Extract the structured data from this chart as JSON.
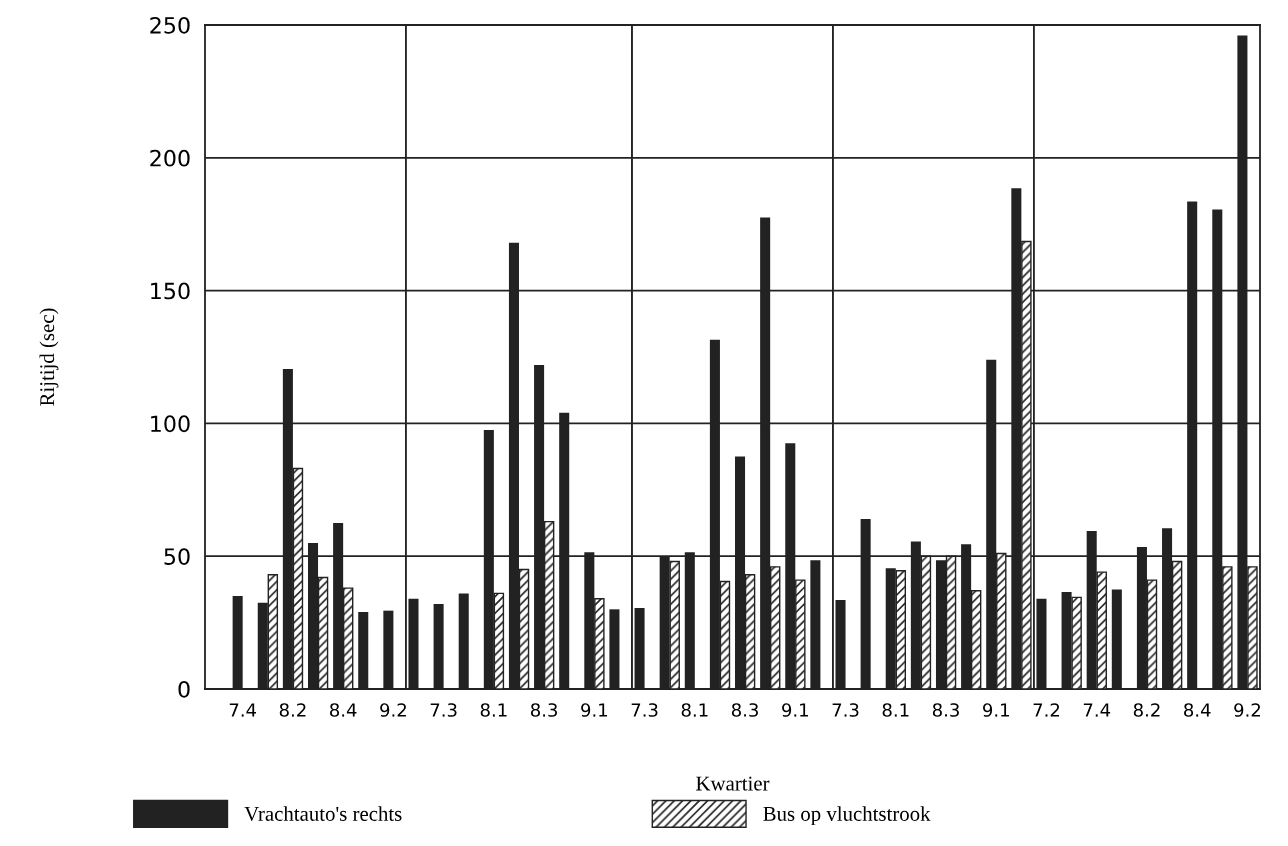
{
  "chart_data": [
    {
      "type": "bar",
      "ylabel": "Rijtijd (sec)",
      "categories": [
        null,
        "7.4",
        null,
        "8.2",
        null,
        "8.4",
        null,
        "9.2"
      ],
      "ylim": [
        0,
        250
      ],
      "yticks": [
        0,
        50,
        100,
        150,
        200,
        250
      ],
      "grid": "y",
      "legend": "bottom",
      "series": [
        {
          "name": "Vrachtauto's rechts",
          "color": "#222222",
          "values": [
            null,
            35,
            32.5,
            120.5,
            55,
            62.5,
            29,
            29.5
          ]
        },
        {
          "name": "Bus op vluchtstrook",
          "color": "#222222",
          "values": [
            null,
            null,
            43,
            83,
            42,
            38,
            null,
            null
          ]
        }
      ]
    },
    {
      "type": "bar",
      "categories": [
        null,
        "7.3",
        null,
        "8.1",
        null,
        "8.3",
        null,
        "9.1",
        null
      ],
      "ylim": [
        0,
        250
      ],
      "yticks": [
        0,
        50,
        100,
        150,
        200,
        250
      ],
      "grid": "y",
      "tick_labels": "x",
      "series": [
        {
          "color": "#222222",
          "values": [
            34,
            32,
            36,
            97.5,
            168,
            122,
            104,
            51.5,
            30
          ]
        },
        {
          "color": "#222222",
          "values": [
            null,
            null,
            null,
            36,
            45,
            63,
            null,
            34,
            null
          ]
        }
      ]
    },
    {
      "type": "bar",
      "xlabel": "Kwartier",
      "categories": [
        "7.3",
        null,
        "8.1",
        null,
        "8.3",
        null,
        "9.1",
        null
      ],
      "ylim": [
        0,
        250
      ],
      "yticks": [
        0,
        50,
        100,
        150,
        200,
        250
      ],
      "grid": "y",
      "tick_labels": "x",
      "series": [
        {
          "color": "#222222",
          "values": [
            30.5,
            50,
            51.5,
            131.5,
            87.5,
            177.5,
            92.5,
            48.5
          ]
        },
        {
          "color": "#222222",
          "values": [
            null,
            48,
            null,
            40.5,
            43,
            46,
            41,
            null
          ]
        }
      ]
    },
    {
      "type": "bar",
      "categories": [
        "7.3",
        null,
        "8.1",
        null,
        "8.3",
        null,
        "9.1",
        null
      ],
      "ylim": [
        0,
        250
      ],
      "yticks": [
        0,
        50,
        100,
        150,
        200,
        250
      ],
      "grid": "y",
      "tick_labels": "x",
      "series": [
        {
          "color": "#222222",
          "values": [
            33.5,
            64,
            45.5,
            55.5,
            48.5,
            54.5,
            124,
            188.5
          ]
        },
        {
          "color": "#222222",
          "values": [
            null,
            null,
            44.5,
            50,
            50,
            37,
            51,
            168.5
          ]
        }
      ]
    },
    {
      "type": "bar",
      "categories": [
        "7.2",
        null,
        "7.4",
        null,
        "8.2",
        null,
        "8.4",
        null,
        "9.2"
      ],
      "ylim": [
        0,
        250
      ],
      "yticks": [
        0,
        50,
        100,
        150,
        200,
        250
      ],
      "grid": "y",
      "tick_labels": "x",
      "series": [
        {
          "color": "#222222",
          "values": [
            34,
            36.5,
            59.5,
            37.5,
            53.5,
            60.5,
            183.5,
            180.5,
            246
          ]
        },
        {
          "color": "#222222",
          "values": [
            null,
            34.5,
            44,
            null,
            41,
            48,
            null,
            46,
            46
          ]
        }
      ]
    }
  ]
}
